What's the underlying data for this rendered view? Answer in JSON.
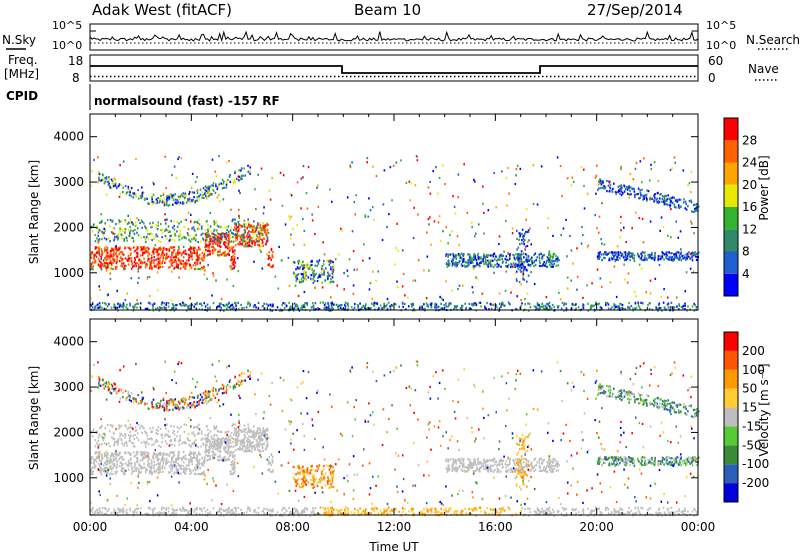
{
  "header": {
    "radar": "Adak West (fitACF)",
    "beam": "Beam 10",
    "date": "27/Sep/2014"
  },
  "panels": {
    "noise": {
      "left_label": "N.Sky",
      "right_label": "N.Search",
      "left_ticks": [
        "10^5",
        "10^0"
      ],
      "right_ticks": [
        "10^5",
        "10^0"
      ]
    },
    "freq": {
      "left_label_1": "Freq.",
      "left_label_2": "[MHz]",
      "right_label": "Nave",
      "left_ticks": [
        "18",
        "8"
      ],
      "right_ticks": [
        "60",
        "0"
      ]
    },
    "cpid": {
      "label": "CPID",
      "text": "normalsound (fast) -157 RF"
    }
  },
  "chart_data": [
    {
      "type": "heatmap",
      "title": "Power",
      "ylabel": "Slant Range [km]",
      "xlabel": "",
      "y_ticks": [
        "1000",
        "2000",
        "3000",
        "4000"
      ],
      "ylim": [
        180,
        4500
      ],
      "colorbar_label": "Power [dB]",
      "colorbar_ticks": [
        "4",
        "8",
        "12",
        "16",
        "20",
        "24",
        "28"
      ],
      "colors": [
        "#0000ff",
        "#1f5fd0",
        "#2f8a6a",
        "#32b332",
        "#e8e800",
        "#ffa500",
        "#ff6000",
        "#ff0000"
      ]
    },
    {
      "type": "heatmap",
      "title": "Velocity",
      "ylabel": "Slant Range [km]",
      "xlabel": "Time UT",
      "y_ticks": [
        "1000",
        "2000",
        "3000",
        "4000"
      ],
      "ylim": [
        180,
        4500
      ],
      "x_ticks": [
        "00:00",
        "04:00",
        "08:00",
        "12:00",
        "16:00",
        "20:00",
        "00:00"
      ],
      "colorbar_label": "Velocity [m s⁻¹]",
      "colorbar_ticks": [
        "200",
        "100",
        "50",
        "15",
        "-15",
        "-50",
        "-100",
        "-200"
      ],
      "colors": [
        "#0000dd",
        "#2a5fb8",
        "#3a8a3a",
        "#55cc33",
        "#bebebe",
        "#ffcc33",
        "#ff9900",
        "#ff5500",
        "#ff0000"
      ]
    }
  ]
}
